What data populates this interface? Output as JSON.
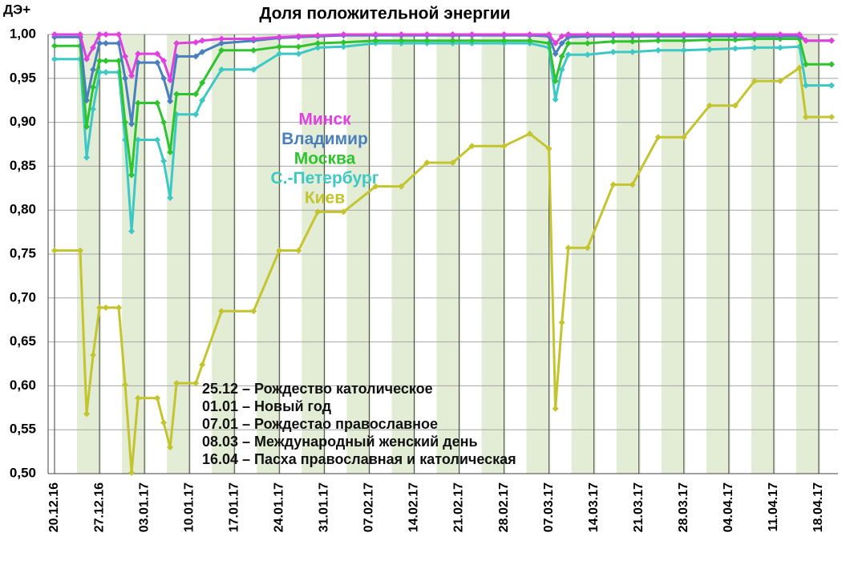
{
  "chart_data": {
    "type": "line",
    "title": "Доля положительной энергии",
    "y_label": "ДЭ+",
    "x": [
      "20.12.16",
      "24.12.16",
      "25.12.16",
      "26.12.16",
      "27.12.16",
      "28.12.16",
      "30.12.16",
      "31.12.16",
      "01.01.17",
      "02.01.17",
      "05.01.17",
      "06.01.17",
      "07.01.17",
      "08.01.17",
      "11.01.17",
      "12.01.17",
      "15.01.17",
      "20.01.17",
      "24.01.17",
      "27.01.17",
      "30.01.17",
      "03.02.17",
      "08.02.17",
      "12.02.17",
      "16.02.17",
      "20.02.17",
      "23.02.17",
      "28.02.17",
      "04.03.17",
      "07.03.17",
      "08.03.17",
      "09.03.17",
      "10.03.17",
      "13.03.17",
      "17.03.17",
      "20.03.17",
      "24.03.17",
      "28.03.17",
      "01.04.17",
      "05.04.17",
      "08.04.17",
      "12.04.17",
      "15.04.17",
      "16.04.17",
      "20.04.17"
    ],
    "xlim": [
      "19.12.16",
      "21.04.17"
    ],
    "xticks": [
      "20.12.16",
      "27.12.16",
      "03.01.17",
      "10.01.17",
      "17.01.17",
      "24.01.17",
      "31.01.17",
      "07.02.17",
      "14.02.17",
      "21.02.17",
      "28.02.17",
      "07.03.17",
      "14.03.17",
      "21.03.17",
      "28.03.17",
      "04.04.17",
      "11.04.17",
      "18.04.17"
    ],
    "ylim": [
      0.5,
      1.0
    ],
    "yticks": [
      {
        "value": 0.5,
        "label": "0,50"
      },
      {
        "value": 0.55,
        "label": "0,55"
      },
      {
        "value": 0.6,
        "label": "0,60"
      },
      {
        "value": 0.65,
        "label": "0,65"
      },
      {
        "value": 0.7,
        "label": "0,70"
      },
      {
        "value": 0.75,
        "label": "0,75"
      },
      {
        "value": 0.8,
        "label": "0,80"
      },
      {
        "value": 0.85,
        "label": "0,85"
      },
      {
        "value": 0.9,
        "label": "0,90"
      },
      {
        "value": 0.95,
        "label": "0,95"
      },
      {
        "value": 1.0,
        "label": "1,00"
      }
    ],
    "grid": true,
    "series": [
      {
        "name": "Минск",
        "color": "#e040e0",
        "values": [
          1.0,
          1.0,
          0.972,
          0.985,
          1.0,
          1.0,
          1.0,
          0.975,
          0.953,
          0.978,
          0.978,
          0.97,
          0.948,
          0.99,
          0.991,
          0.993,
          0.995,
          0.995,
          0.997,
          0.998,
          0.999,
          1.0,
          1.0,
          1.0,
          1.0,
          1.0,
          1.0,
          1.0,
          1.0,
          1.0,
          0.99,
          0.998,
          1.0,
          1.0,
          1.0,
          1.0,
          1.0,
          1.0,
          1.0,
          1.0,
          1.0,
          1.0,
          1.0,
          0.993,
          0.993
        ]
      },
      {
        "name": "Владимир",
        "color": "#4a7fbd",
        "values": [
          0.997,
          0.997,
          0.925,
          0.96,
          0.99,
          0.99,
          0.99,
          0.95,
          0.898,
          0.968,
          0.968,
          0.95,
          0.924,
          0.975,
          0.975,
          0.98,
          0.99,
          0.993,
          0.996,
          0.997,
          0.998,
          0.999,
          0.999,
          0.999,
          0.999,
          0.999,
          0.999,
          0.999,
          0.999,
          0.998,
          0.978,
          0.99,
          0.997,
          0.998,
          0.998,
          0.998,
          0.998,
          0.998,
          0.998,
          0.998,
          0.998,
          0.998,
          0.998,
          0.993,
          0.993
        ]
      },
      {
        "name": "Москва",
        "color": "#2ec42e",
        "values": [
          0.987,
          0.987,
          0.895,
          0.94,
          0.97,
          0.97,
          0.97,
          0.9,
          0.84,
          0.922,
          0.922,
          0.9,
          0.866,
          0.932,
          0.932,
          0.945,
          0.982,
          0.982,
          0.986,
          0.986,
          0.99,
          0.991,
          0.993,
          0.993,
          0.993,
          0.993,
          0.993,
          0.993,
          0.993,
          0.99,
          0.947,
          0.975,
          0.99,
          0.99,
          0.992,
          0.992,
          0.993,
          0.993,
          0.994,
          0.994,
          0.995,
          0.995,
          0.995,
          0.966,
          0.966
        ]
      },
      {
        "name": "С.-Петербург",
        "color": "#3cc8c4",
        "values": [
          0.972,
          0.972,
          0.86,
          0.915,
          0.957,
          0.957,
          0.957,
          0.88,
          0.776,
          0.88,
          0.88,
          0.856,
          0.814,
          0.909,
          0.909,
          0.925,
          0.96,
          0.96,
          0.978,
          0.978,
          0.985,
          0.986,
          0.99,
          0.99,
          0.99,
          0.99,
          0.99,
          0.99,
          0.99,
          0.985,
          0.926,
          0.96,
          0.977,
          0.977,
          0.98,
          0.98,
          0.982,
          0.982,
          0.983,
          0.984,
          0.985,
          0.985,
          0.986,
          0.942,
          0.942
        ]
      },
      {
        "name": "Киев",
        "color": "#c4c42e",
        "values": [
          0.754,
          0.754,
          0.568,
          0.635,
          0.689,
          0.689,
          0.689,
          0.601,
          0.501,
          0.586,
          0.586,
          0.558,
          0.53,
          0.603,
          0.603,
          0.624,
          0.685,
          0.685,
          0.754,
          0.754,
          0.798,
          0.798,
          0.827,
          0.827,
          0.854,
          0.854,
          0.873,
          0.873,
          0.887,
          0.87,
          0.574,
          0.672,
          0.757,
          0.757,
          0.829,
          0.829,
          0.883,
          0.883,
          0.919,
          0.919,
          0.947,
          0.947,
          0.962,
          0.906,
          0.906
        ]
      }
    ],
    "annotations": [
      "25.12 – Рождество католическое",
      "01.01 – Новый год",
      "07.01 – Рождестао православное",
      "08.03 – Международный женский день",
      "16.04 – Пасха православная и католическая"
    ]
  }
}
